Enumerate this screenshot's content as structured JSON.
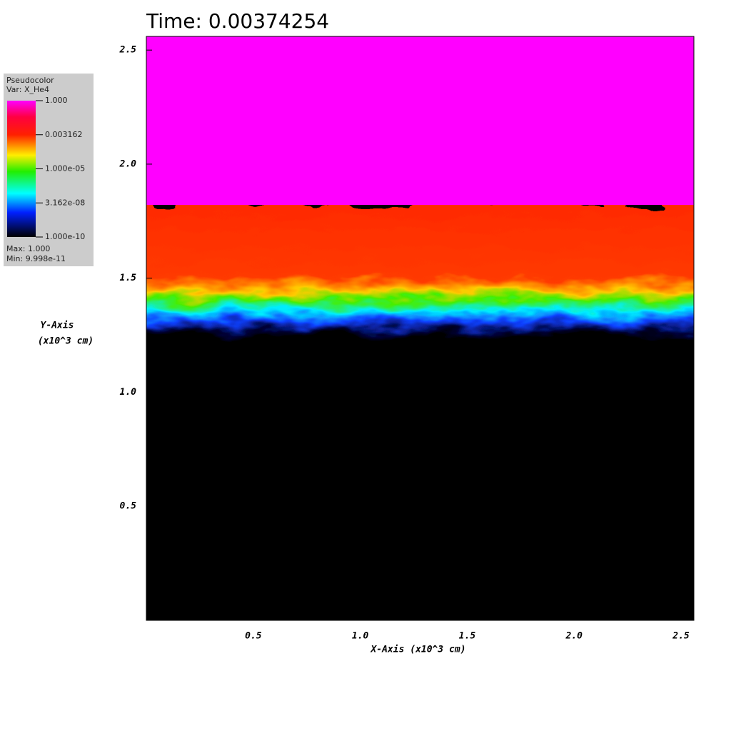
{
  "chart_data": {
    "type": "pseudocolor",
    "title": "Time: 0.00374254",
    "xlabel": "X-Axis (x10^3 cm)",
    "ylabel": [
      "Y-Axis",
      "(x10^3 cm)"
    ],
    "xlim": [
      0,
      2.56
    ],
    "ylim": [
      0,
      2.56
    ],
    "xticks": [
      0.5,
      {
        "value": 1,
        "label": "1.0"
      },
      1.5,
      {
        "value": 2,
        "label": "2.0"
      },
      2.5
    ],
    "yticks": [
      0.5,
      {
        "value": 1,
        "label": "1.0"
      },
      1.5,
      {
        "value": 2,
        "label": "2.0"
      },
      2.5
    ],
    "colorbar": {
      "title": "Pseudocolor",
      "variable": "Var: X_He4",
      "log": true,
      "clim": [
        1e-10,
        1
      ],
      "ticks": [
        {
          "value": 1,
          "label": "1.000"
        },
        {
          "value": 0.003162,
          "label": "0.003162"
        },
        {
          "value": 1e-05,
          "label": "1.000e-05"
        },
        {
          "value": 3.162e-08,
          "label": "3.162e-08"
        },
        {
          "value": 1e-10,
          "label": "1.000e-10"
        }
      ],
      "max_text": "Max: 1.000",
      "min_text": "Min: 9.998e-11"
    }
  }
}
